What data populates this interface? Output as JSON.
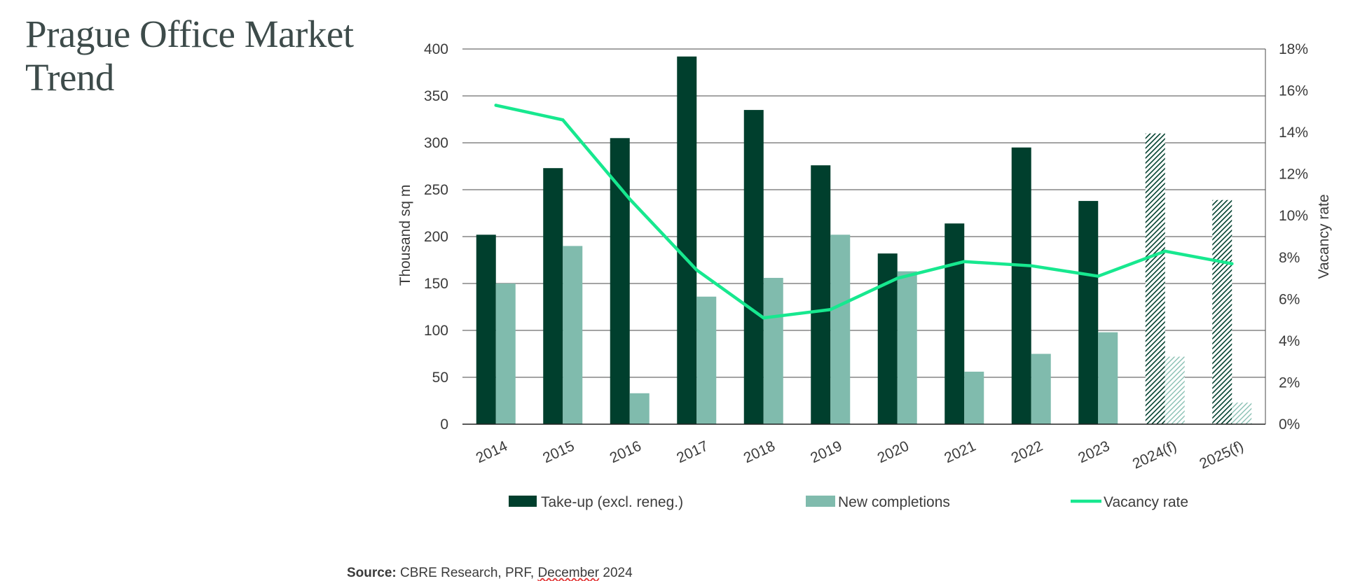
{
  "title": "Prague Office Market Trend",
  "source": {
    "label": "Source:",
    "text_before": "CBRE Research, PRF, ",
    "text_underlined": "December",
    "text_after": " 2024"
  },
  "colors": {
    "take_up": "#003f2d",
    "completions": "#80bbad",
    "vacancy": "#17e88f",
    "grid": "#4a4a4a",
    "text": "#3c3c3c"
  },
  "chart_data": {
    "type": "bar",
    "categories": [
      "2014",
      "2015",
      "2016",
      "2017",
      "2018",
      "2019",
      "2020",
      "2021",
      "2022",
      "2023",
      "2024(f)",
      "2025(f)"
    ],
    "forecast_categories": [
      "2024(f)",
      "2025(f)"
    ],
    "ylabel": "Thousand sq m",
    "y2label": "Vacancy rate",
    "ylim": [
      0,
      400
    ],
    "y2lim": [
      0,
      18
    ],
    "yticks": [
      "0",
      "50",
      "100",
      "150",
      "200",
      "250",
      "300",
      "350",
      "400"
    ],
    "y2ticks": [
      "0%",
      "2%",
      "4%",
      "6%",
      "8%",
      "10%",
      "12%",
      "14%",
      "16%",
      "18%"
    ],
    "grid": true,
    "legend_position": "bottom",
    "series": [
      {
        "name": "Take-up (excl. reneg.)",
        "kind": "bar",
        "axis": "left",
        "values": [
          202,
          273,
          305,
          392,
          335,
          276,
          182,
          214,
          295,
          238,
          310,
          239
        ]
      },
      {
        "name": "New completions",
        "kind": "bar",
        "axis": "left",
        "values": [
          150,
          190,
          33,
          136,
          156,
          202,
          163,
          56,
          75,
          98,
          72,
          23
        ]
      },
      {
        "name": "Vacancy rate",
        "kind": "line",
        "axis": "right",
        "values": [
          15.3,
          14.6,
          10.8,
          7.4,
          5.1,
          5.5,
          7.0,
          7.8,
          7.6,
          7.1,
          8.3,
          7.7
        ]
      }
    ]
  }
}
